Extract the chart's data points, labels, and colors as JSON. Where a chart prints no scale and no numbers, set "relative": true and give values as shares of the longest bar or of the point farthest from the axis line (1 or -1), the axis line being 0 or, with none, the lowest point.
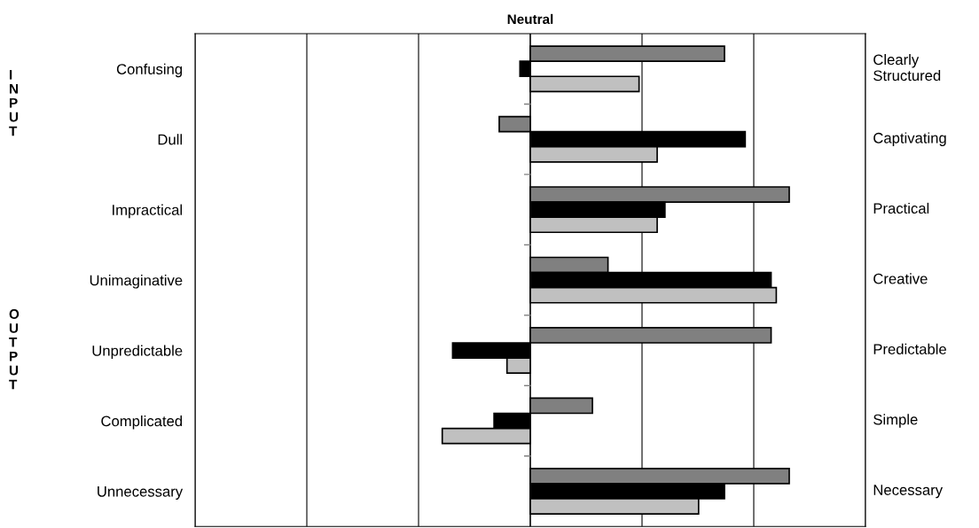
{
  "chart_data": {
    "type": "bar",
    "orientation": "horizontal",
    "relative": true,
    "title": "Neutral",
    "categories": [
      "Confusing",
      "Dull",
      "Impractical",
      "Unimaginative",
      "Unpredictable",
      "Complicated",
      "Unnecessary"
    ],
    "series": [
      {
        "color": "#808080",
        "values": [
          0.75,
          -0.12,
          1.0,
          0.3,
          0.93,
          0.24,
          1.0
        ]
      },
      {
        "color": "#000000",
        "values": [
          -0.04,
          0.83,
          0.52,
          0.93,
          -0.3,
          -0.14,
          0.75
        ]
      },
      {
        "color": "#c0c0c0",
        "values": [
          0.42,
          0.49,
          0.49,
          0.95,
          -0.09,
          -0.34,
          0.65
        ]
      }
    ],
    "annotations": [
      "Clearly\nStructured",
      "Captivating",
      "Practical",
      "Creative",
      "Predictable",
      "Simple",
      "Necessary",
      "I\nN\nP\nU\nT",
      "O\nU\nT\nP\nU\nT"
    ],
    "grid": "x",
    "tick_labels": "y"
  }
}
